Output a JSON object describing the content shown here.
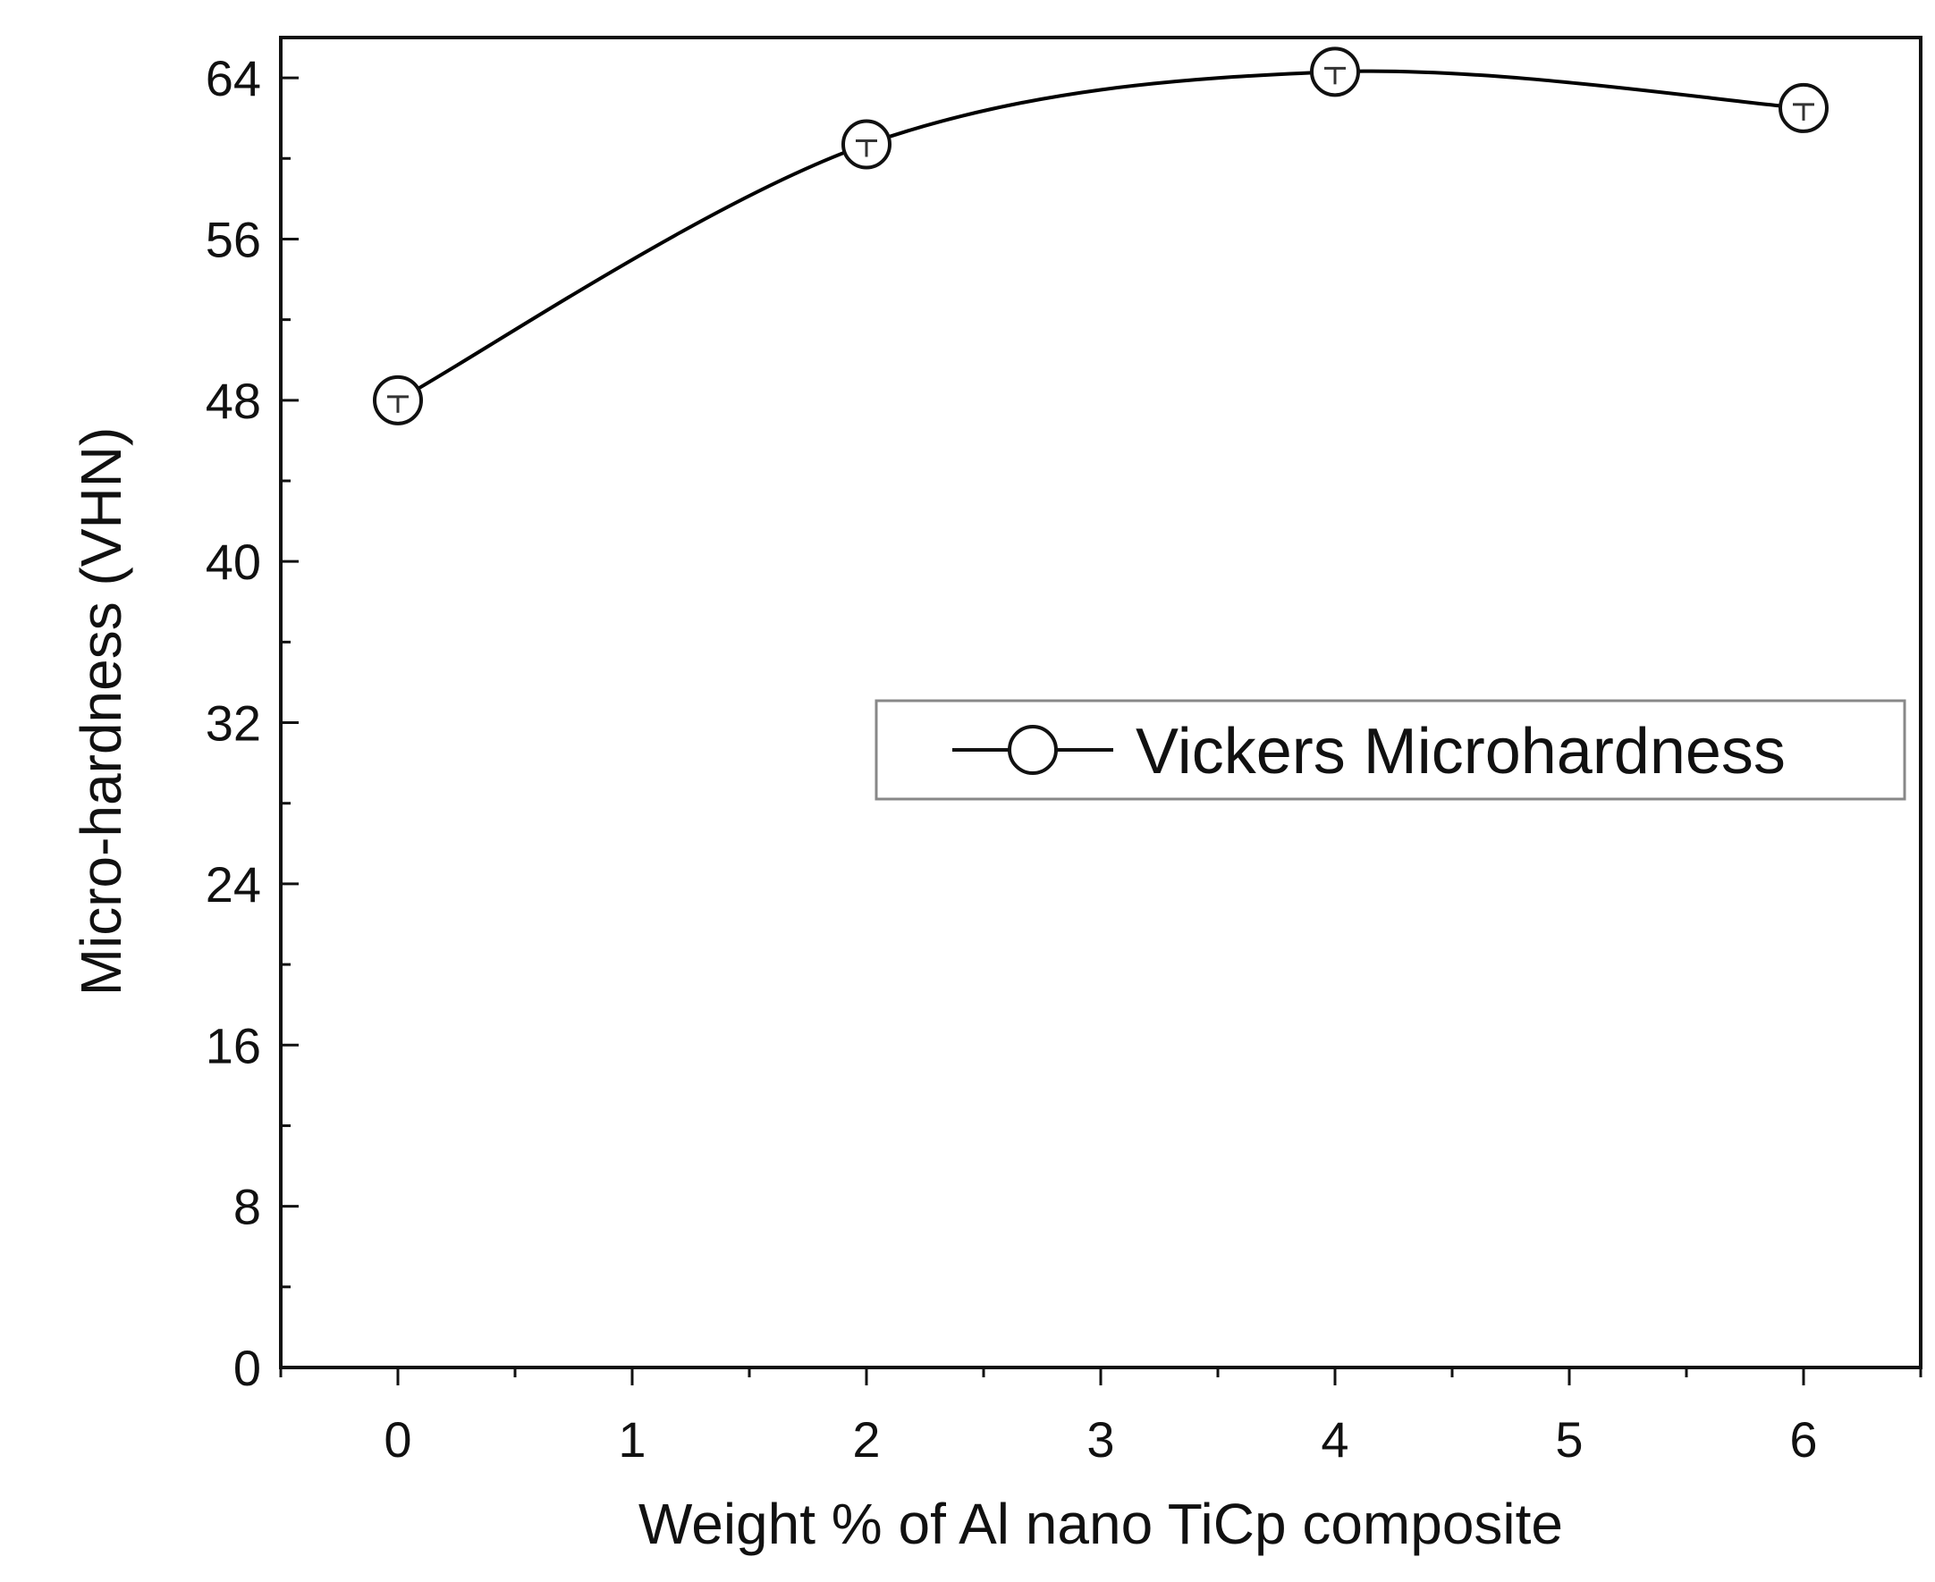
{
  "chart_data": {
    "type": "line",
    "title": "",
    "xlabel": "Weight % of Al nano TiCp composite",
    "ylabel": "Micro-hardness (VHN)",
    "xlim": [
      -0.5,
      6.5
    ],
    "ylim": [
      0,
      66
    ],
    "xticks": [
      0,
      1,
      2,
      3,
      4,
      5,
      6
    ],
    "yticks": [
      0,
      8,
      16,
      24,
      32,
      40,
      48,
      56,
      64
    ],
    "grid": false,
    "legend_position": "center-right",
    "series": [
      {
        "name": "Vickers Microhardness",
        "x": [
          0,
          2,
          4,
          6
        ],
        "y": [
          48,
          60.7,
          64.3,
          62.5
        ],
        "marker": "open-circle",
        "color": "#000000",
        "smooth": true
      }
    ]
  }
}
